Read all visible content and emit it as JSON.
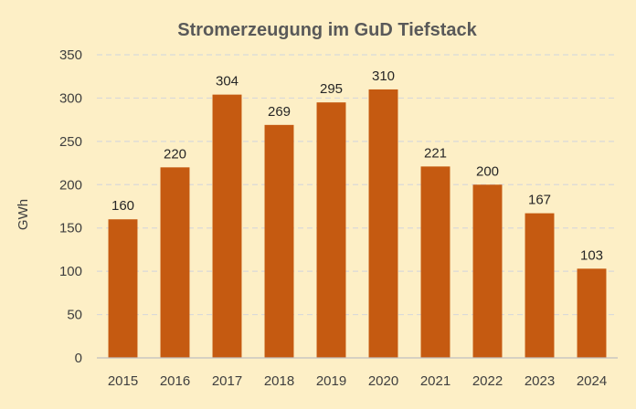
{
  "chart_data": {
    "type": "bar",
    "title": "Stromerzeugung im GuD Tiefstack",
    "xlabel": "",
    "ylabel": "GWh",
    "categories": [
      "2015",
      "2016",
      "2017",
      "2018",
      "2019",
      "2020",
      "2021",
      "2022",
      "2023",
      "2024"
    ],
    "values": [
      160,
      220,
      304,
      269,
      295,
      310,
      221,
      200,
      167,
      103
    ],
    "ylim": [
      0,
      350
    ],
    "yticks": [
      0,
      50,
      100,
      150,
      200,
      250,
      300,
      350
    ],
    "grid": true,
    "legend": "none",
    "bar_color": "#c55a11",
    "background_color": "#fdefc6"
  }
}
